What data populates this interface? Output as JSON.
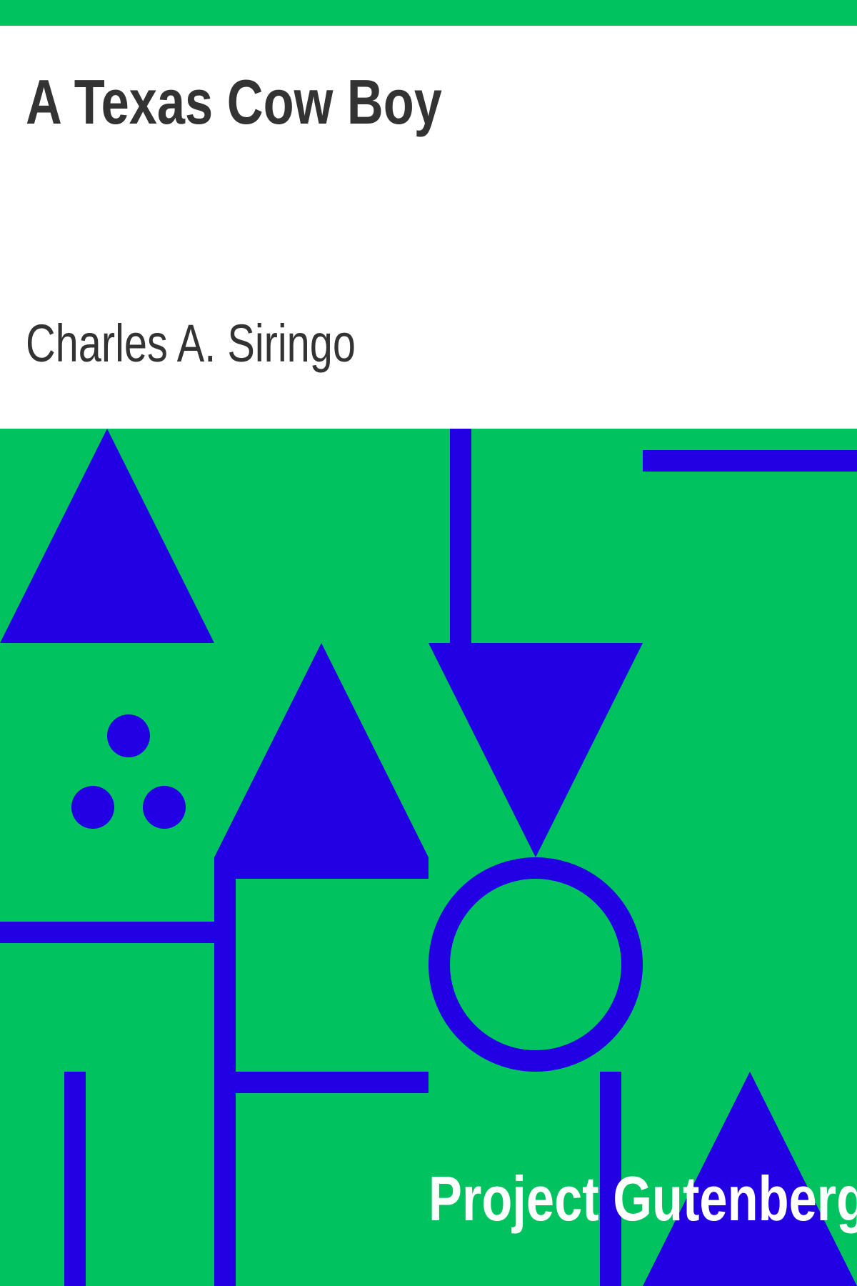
{
  "book": {
    "title": "A Texas Cow Boy",
    "author": "Charles A. Siringo",
    "publisher": "Project Gutenberg"
  },
  "colors": {
    "background": "#ffffff",
    "panel": "#00c35f",
    "shapes": "#2200e3",
    "title_text": "#333333",
    "publisher_text": "#ffffff"
  }
}
